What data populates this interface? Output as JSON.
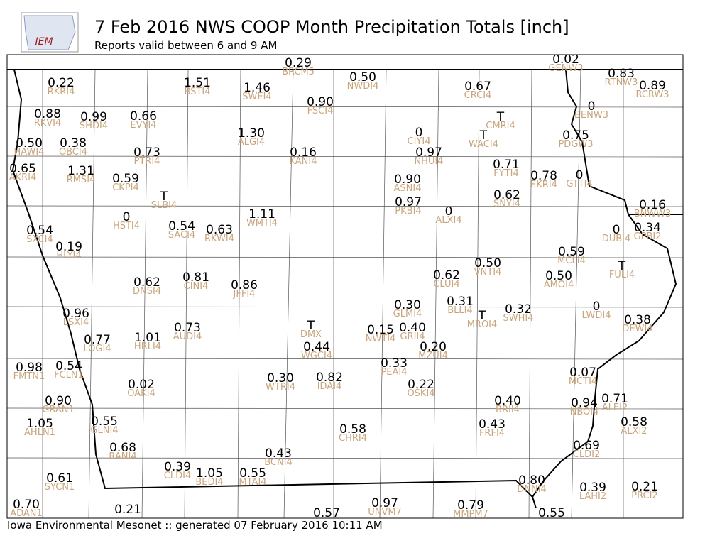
{
  "header": {
    "logo": "IEM",
    "title": "7 Feb 2016 NWS COOP Month Precipitation Totals [inch]",
    "subtitle": "Reports valid between 6 and 9 AM"
  },
  "stations": [
    {
      "value": "0.29",
      "id": "BRCM5"
    },
    {
      "value": "0.02",
      "id": "GENW3"
    },
    {
      "value": "0.22",
      "id": "RKRI4"
    },
    {
      "value": "1.51",
      "id": "BSTI4"
    },
    {
      "value": "1.46",
      "id": "SWEI4"
    },
    {
      "value": "0.50",
      "id": "NWDI4"
    },
    {
      "value": "0.90",
      "id": "FSCI4"
    },
    {
      "value": "0.67",
      "id": "CRCI4"
    },
    {
      "value": "0.83",
      "id": "RTNW3"
    },
    {
      "value": "0.89",
      "id": "RCRW3"
    },
    {
      "value": "0.88",
      "id": "RKVI4"
    },
    {
      "value": "0.99",
      "id": "SHDI4"
    },
    {
      "value": "0.66",
      "id": "EVYI4"
    },
    {
      "value": "T",
      "id": "CMRI4"
    },
    {
      "value": "0",
      "id": "BENW3"
    },
    {
      "value": "1.30",
      "id": "ALGI4"
    },
    {
      "value": "0",
      "id": "CIYI4"
    },
    {
      "value": "T",
      "id": "WACI4"
    },
    {
      "value": "0.75",
      "id": "PDGW3"
    },
    {
      "value": "0.50",
      "id": "HAWI4"
    },
    {
      "value": "0.38",
      "id": "OBCI4"
    },
    {
      "value": "0.73",
      "id": "PTRI4"
    },
    {
      "value": "0.16",
      "id": "KANI4"
    },
    {
      "value": "0.97",
      "id": "NHUI4"
    },
    {
      "value": "0.71",
      "id": "FYTI4"
    },
    {
      "value": "0.65",
      "id": "AKRI4"
    },
    {
      "value": "1.31",
      "id": "RMSI4"
    },
    {
      "value": "0.59",
      "id": "CKPI4"
    },
    {
      "value": "0.90",
      "id": "ASNI4"
    },
    {
      "value": "0.78",
      "id": "EKRI4"
    },
    {
      "value": "0",
      "id": "GTTI4"
    },
    {
      "value": "T",
      "id": "SLBI4"
    },
    {
      "value": "0.62",
      "id": "SNYI4"
    },
    {
      "value": "0.97",
      "id": "PKBI4"
    },
    {
      "value": "0",
      "id": "ALXI4"
    },
    {
      "value": "0.16",
      "id": "BNWW3"
    },
    {
      "value": "0",
      "id": "HSTI4"
    },
    {
      "value": "1.11",
      "id": "WMTI4"
    },
    {
      "value": "0.54",
      "id": "SACI4"
    },
    {
      "value": "0.63",
      "id": "RKWI4"
    },
    {
      "value": "0.54",
      "id": "SXCI4"
    },
    {
      "value": "0",
      "id": "DUBI4"
    },
    {
      "value": "0.34",
      "id": "GPBI2"
    },
    {
      "value": "0.19",
      "id": "HLYI4"
    },
    {
      "value": "0.59",
      "id": "MCLI4"
    },
    {
      "value": "0.50",
      "id": "VNTI4"
    },
    {
      "value": "0.62",
      "id": "CLUI4"
    },
    {
      "value": "0.50",
      "id": "AMOI4"
    },
    {
      "value": "T",
      "id": "FULI4"
    },
    {
      "value": "0.62",
      "id": "DNSI4"
    },
    {
      "value": "0.81",
      "id": "CINI4"
    },
    {
      "value": "0.86",
      "id": "JFFI4"
    },
    {
      "value": "0.30",
      "id": "GLMI4"
    },
    {
      "value": "0.31",
      "id": "BLLI4"
    },
    {
      "value": "T",
      "id": "MROI4"
    },
    {
      "value": "0.32",
      "id": "SWHI4"
    },
    {
      "value": "0",
      "id": "LWDI4"
    },
    {
      "value": "0.38",
      "id": "DEWI4"
    },
    {
      "value": "0.96",
      "id": "LSXI4"
    },
    {
      "value": "T",
      "id": "DMX"
    },
    {
      "value": "0.15",
      "id": "NWTI4"
    },
    {
      "value": "0.40",
      "id": "GRII4"
    },
    {
      "value": "0.77",
      "id": "LOGI4"
    },
    {
      "value": "1.01",
      "id": "HRLI4"
    },
    {
      "value": "0.73",
      "id": "AUDI4"
    },
    {
      "value": "0.44",
      "id": "WGCI4"
    },
    {
      "value": "0.20",
      "id": "MZUI4"
    },
    {
      "value": "0.33",
      "id": "PEAI4"
    },
    {
      "value": "0.98",
      "id": "FMTN1"
    },
    {
      "value": "0.54",
      "id": "FCLN1"
    },
    {
      "value": "0.07",
      "id": "MCTI4"
    },
    {
      "value": "0.02",
      "id": "OAKI4"
    },
    {
      "value": "0.30",
      "id": "WTRI4"
    },
    {
      "value": "0.82",
      "id": "IDAI4"
    },
    {
      "value": "0.22",
      "id": "OSKI4"
    },
    {
      "value": "0.90",
      "id": "GRAN1"
    },
    {
      "value": "0.40",
      "id": "BRII4"
    },
    {
      "value": "0.94",
      "id": "NBOI4"
    },
    {
      "value": "0.71",
      "id": "ALEI2"
    },
    {
      "value": "1.05",
      "id": "AHLN1"
    },
    {
      "value": "0.55",
      "id": "GLNI4"
    },
    {
      "value": "0.58",
      "id": "CHRI4"
    },
    {
      "value": "0.43",
      "id": "FRFI4"
    },
    {
      "value": "0.58",
      "id": "ALXI2"
    },
    {
      "value": "0.69",
      "id": "CLDI2"
    },
    {
      "value": "0.68",
      "id": "RANI4"
    },
    {
      "value": "0.43",
      "id": "BCNI4"
    },
    {
      "value": "0.39",
      "id": "CLDI4"
    },
    {
      "value": "1.05",
      "id": "BEDI4"
    },
    {
      "value": "0.55",
      "id": "MTAI4"
    },
    {
      "value": "0.61",
      "id": "SYCN1"
    },
    {
      "value": "0.80",
      "id": "DNNI4"
    },
    {
      "value": "0.39",
      "id": "LAHI2"
    },
    {
      "value": "0.21",
      "id": "PRCI2"
    },
    {
      "value": "0.70",
      "id": "ADAN1"
    },
    {
      "value": "0.97",
      "id": "UNVM7"
    },
    {
      "value": "0.79",
      "id": "MMPM7"
    },
    {
      "value": "0.21"
    },
    {
      "value": "0.55"
    },
    {
      "value": "0.57"
    }
  ],
  "footer": "Iowa Environmental Mesonet :: generated 07 February 2016 10:11 AM"
}
